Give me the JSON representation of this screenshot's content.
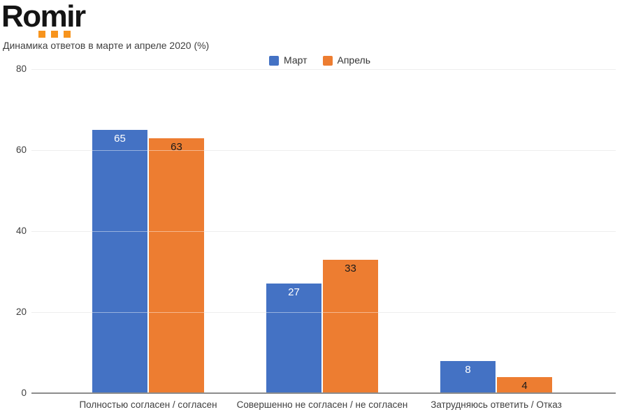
{
  "logo": {
    "text": "Romir",
    "squares_color": "#F7941D",
    "squares_count": 3
  },
  "chart_data": {
    "type": "bar",
    "title": "Динамика ответов в марте и апреле 2020 (%)",
    "categories": [
      "Полностью согласен / согласен",
      "Совершенно не согласен / не согласен",
      "Затрудняюсь ответить / Отказ"
    ],
    "series": [
      {
        "name": "Март",
        "color": "#4472C4",
        "label_color": "#ffffff",
        "values": [
          65,
          27,
          8
        ]
      },
      {
        "name": "Апрель",
        "color": "#ED7D31",
        "label_color": "#1a1a1a",
        "values": [
          63,
          33,
          4
        ]
      }
    ],
    "ylim": [
      0,
      80
    ],
    "yticks": [
      0,
      20,
      40,
      60,
      80
    ],
    "grid": true,
    "legend_position": "top-center",
    "xlabel": "",
    "ylabel": ""
  },
  "colors": {
    "axis_line": "#8c8c8c",
    "gridline": "#e0e0e0",
    "axis_text": "#3f3f3f",
    "background": "#ffffff"
  }
}
